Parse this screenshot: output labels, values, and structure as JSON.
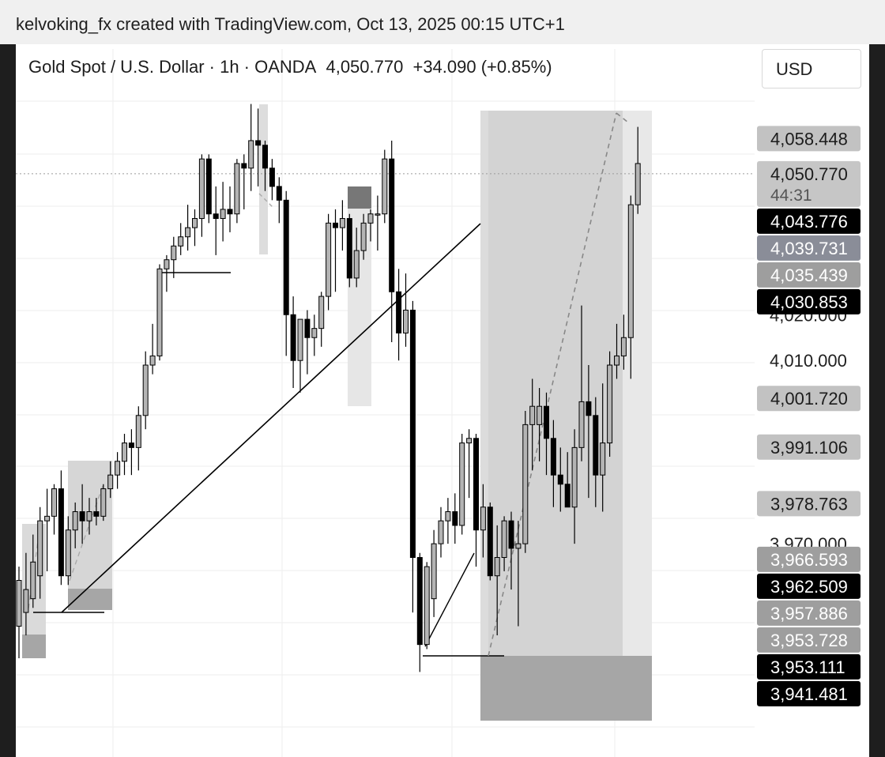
{
  "attribution": "kelvoking_fx created with TradingView.com, Oct 13, 2025 00:15 UTC+1",
  "legend": {
    "symbol": "Gold Spot / U.S. Dollar · 1h · OANDA",
    "last": "4,050.770",
    "change": "+34.090 (+0.85%)"
  },
  "currency": "USD",
  "countdown": "44:31",
  "colors": {
    "up_body": "#b4b4b4",
    "down_body": "#000000",
    "grid": "#eeeeee",
    "zone_light": "#e6e6e6",
    "zone_mid": "#d2d2d2",
    "zone_dark": "#a6a6a6"
  },
  "chart_data": {
    "type": "candlestick",
    "symbol": "XAUUSD",
    "timeframe": "1h",
    "ylim": [
      3930,
      4068
    ],
    "y_ticks": [
      "4,020.000",
      "4,010.000",
      "3,970.000"
    ],
    "price_labels": [
      {
        "text": "4,058.448",
        "value": 4058.448,
        "style": "gray"
      },
      {
        "text": "4,050.770",
        "value": 4050.77,
        "style": "current"
      },
      {
        "text": "4,043.776",
        "value": 4043.776,
        "style": "black"
      },
      {
        "text": "4,039.731",
        "value": 4039.731,
        "style": "slate"
      },
      {
        "text": "4,035.439",
        "value": 4035.439,
        "style": "gray-dark"
      },
      {
        "text": "4,030.853",
        "value": 4030.853,
        "style": "black"
      },
      {
        "text": "4,001.720",
        "value": 4001.72,
        "style": "gray"
      },
      {
        "text": "3,991.106",
        "value": 3991.106,
        "style": "gray"
      },
      {
        "text": "3,978.763",
        "value": 3978.763,
        "style": "gray"
      },
      {
        "text": "3,966.593",
        "value": 3966.593,
        "style": "gray-dark"
      },
      {
        "text": "3,962.509",
        "value": 3962.509,
        "style": "black"
      },
      {
        "text": "3,957.886",
        "value": 3957.886,
        "style": "gray-dark"
      },
      {
        "text": "3,953.728",
        "value": 3953.728,
        "style": "gray-dark"
      },
      {
        "text": "3,953.111",
        "value": 3953.111,
        "style": "black"
      },
      {
        "text": "3,941.481",
        "value": 3941.481,
        "style": "black"
      }
    ],
    "candles": [
      {
        "o": 3952,
        "h": 3965,
        "l": 3945,
        "c": 3962
      },
      {
        "o": 3955,
        "h": 3968,
        "l": 3950,
        "c": 3960
      },
      {
        "o": 3958,
        "h": 3972,
        "l": 3956,
        "c": 3966
      },
      {
        "o": 3963,
        "h": 3978,
        "l": 3958,
        "c": 3975
      },
      {
        "o": 3975,
        "h": 3982,
        "l": 3964,
        "c": 3976
      },
      {
        "o": 3976,
        "h": 3983,
        "l": 3972,
        "c": 3982
      },
      {
        "o": 3982,
        "h": 3986,
        "l": 3961,
        "c": 3963
      },
      {
        "o": 3963,
        "h": 3976,
        "l": 3961,
        "c": 3973
      },
      {
        "o": 3973,
        "h": 3979,
        "l": 3969,
        "c": 3977
      },
      {
        "o": 3977,
        "h": 3983,
        "l": 3970,
        "c": 3975
      },
      {
        "o": 3975,
        "h": 3980,
        "l": 3972,
        "c": 3977
      },
      {
        "o": 3977,
        "h": 3980,
        "l": 3974,
        "c": 3976
      },
      {
        "o": 3976,
        "h": 3983,
        "l": 3975,
        "c": 3982
      },
      {
        "o": 3982,
        "h": 3988,
        "l": 3980,
        "c": 3985
      },
      {
        "o": 3985,
        "h": 3990,
        "l": 3982,
        "c": 3988
      },
      {
        "o": 3988,
        "h": 3994,
        "l": 3985,
        "c": 3992
      },
      {
        "o": 3992,
        "h": 3995,
        "l": 3985,
        "c": 3991
      },
      {
        "o": 3991,
        "h": 4000,
        "l": 3986,
        "c": 3998
      },
      {
        "o": 3998,
        "h": 4012,
        "l": 3995,
        "c": 4009
      },
      {
        "o": 4009,
        "h": 4018,
        "l": 4007,
        "c": 4011
      },
      {
        "o": 4011,
        "h": 4031,
        "l": 4010,
        "c": 4030
      },
      {
        "o": 4030,
        "h": 4033,
        "l": 4025,
        "c": 4032
      },
      {
        "o": 4032,
        "h": 4037,
        "l": 4028,
        "c": 4035
      },
      {
        "o": 4035,
        "h": 4040,
        "l": 4033,
        "c": 4037
      },
      {
        "o": 4037,
        "h": 4044,
        "l": 4034,
        "c": 4039
      },
      {
        "o": 4039,
        "h": 4043,
        "l": 4035,
        "c": 4041
      },
      {
        "o": 4041,
        "h": 4055,
        "l": 4037,
        "c": 4054
      },
      {
        "o": 4054,
        "h": 4055,
        "l": 4040,
        "c": 4042
      },
      {
        "o": 4042,
        "h": 4048,
        "l": 4033,
        "c": 4041
      },
      {
        "o": 4041,
        "h": 4049,
        "l": 4036,
        "c": 4043
      },
      {
        "o": 4043,
        "h": 4048,
        "l": 4038,
        "c": 4042
      },
      {
        "o": 4042,
        "h": 4054,
        "l": 4040,
        "c": 4053
      },
      {
        "o": 4053,
        "h": 4055,
        "l": 4043,
        "c": 4052
      },
      {
        "o": 4052,
        "h": 4066,
        "l": 4047,
        "c": 4058
      },
      {
        "o": 4058,
        "h": 4065,
        "l": 4048,
        "c": 4057
      },
      {
        "o": 4057,
        "h": 4058,
        "l": 4047,
        "c": 4052
      },
      {
        "o": 4052,
        "h": 4054,
        "l": 4045,
        "c": 4048
      },
      {
        "o": 4048,
        "h": 4050,
        "l": 4040,
        "c": 4045
      },
      {
        "o": 4045,
        "h": 4047,
        "l": 4011,
        "c": 4020
      },
      {
        "o": 4020,
        "h": 4024,
        "l": 4004,
        "c": 4010
      },
      {
        "o": 4010,
        "h": 4019,
        "l": 4003,
        "c": 4019
      },
      {
        "o": 4019,
        "h": 4021,
        "l": 4007,
        "c": 4015
      },
      {
        "o": 4015,
        "h": 4020,
        "l": 4011,
        "c": 4017
      },
      {
        "o": 4017,
        "h": 4025,
        "l": 4013,
        "c": 4024
      },
      {
        "o": 4024,
        "h": 4042,
        "l": 4021,
        "c": 4040
      },
      {
        "o": 4040,
        "h": 4043,
        "l": 4025,
        "c": 4039
      },
      {
        "o": 4039,
        "h": 4045,
        "l": 4034,
        "c": 4041
      },
      {
        "o": 4041,
        "h": 4042,
        "l": 4026,
        "c": 4028
      },
      {
        "o": 4028,
        "h": 4039,
        "l": 4026,
        "c": 4034
      },
      {
        "o": 4034,
        "h": 4042,
        "l": 4032,
        "c": 4040
      },
      {
        "o": 4040,
        "h": 4043,
        "l": 4036,
        "c": 4042
      },
      {
        "o": 4042,
        "h": 4046,
        "l": 4034,
        "c": 4042
      },
      {
        "o": 4042,
        "h": 4056,
        "l": 4040,
        "c": 4054
      },
      {
        "o": 4054,
        "h": 4058,
        "l": 4014,
        "c": 4025
      },
      {
        "o": 4025,
        "h": 4030,
        "l": 4010,
        "c": 4016
      },
      {
        "o": 4016,
        "h": 4029,
        "l": 4013,
        "c": 4021
      },
      {
        "o": 4021,
        "h": 4023,
        "l": 3955,
        "c": 3967
      },
      {
        "o": 3967,
        "h": 3968,
        "l": 3942,
        "c": 3948
      },
      {
        "o": 3948,
        "h": 3966,
        "l": 3947,
        "c": 3965
      },
      {
        "o": 3958,
        "h": 3973,
        "l": 3954,
        "c": 3970
      },
      {
        "o": 3970,
        "h": 3978,
        "l": 3967,
        "c": 3975
      },
      {
        "o": 3975,
        "h": 3980,
        "l": 3970,
        "c": 3977
      },
      {
        "o": 3977,
        "h": 3981,
        "l": 3970,
        "c": 3974
      },
      {
        "o": 3974,
        "h": 3994,
        "l": 3972,
        "c": 3992
      },
      {
        "o": 3992,
        "h": 3995,
        "l": 3980,
        "c": 3993
      },
      {
        "o": 3993,
        "h": 3994,
        "l": 3965,
        "c": 3973
      },
      {
        "o": 3973,
        "h": 3983,
        "l": 3967,
        "c": 3978
      },
      {
        "o": 3978,
        "h": 3979,
        "l": 3962,
        "c": 3963
      },
      {
        "o": 3963,
        "h": 3974,
        "l": 3950,
        "c": 3967
      },
      {
        "o": 3967,
        "h": 3976,
        "l": 3964,
        "c": 3975
      },
      {
        "o": 3975,
        "h": 3977,
        "l": 3960,
        "c": 3969
      },
      {
        "o": 3969,
        "h": 3975,
        "l": 3952,
        "c": 3970
      },
      {
        "o": 3970,
        "h": 3999,
        "l": 3968,
        "c": 3996
      },
      {
        "o": 3996,
        "h": 4006,
        "l": 3986,
        "c": 4000
      },
      {
        "o": 3996,
        "h": 4004,
        "l": 3988,
        "c": 4000
      },
      {
        "o": 4000,
        "h": 4003,
        "l": 3985,
        "c": 3993
      },
      {
        "o": 3993,
        "h": 3997,
        "l": 3978,
        "c": 3985
      },
      {
        "o": 3985,
        "h": 3991,
        "l": 3977,
        "c": 3983
      },
      {
        "o": 3983,
        "h": 3990,
        "l": 3979,
        "c": 3978
      },
      {
        "o": 3978,
        "h": 3995,
        "l": 3970,
        "c": 3991
      },
      {
        "o": 3991,
        "h": 4022,
        "l": 3988,
        "c": 4001
      },
      {
        "o": 4001,
        "h": 4009,
        "l": 3980,
        "c": 3998
      },
      {
        "o": 3998,
        "h": 4002,
        "l": 3978,
        "c": 3985
      },
      {
        "o": 3985,
        "h": 4005,
        "l": 3977,
        "c": 3992
      },
      {
        "o": 3992,
        "h": 4012,
        "l": 3989,
        "c": 4009
      },
      {
        "o": 4009,
        "h": 4018,
        "l": 4006,
        "c": 4011
      },
      {
        "o": 4011,
        "h": 4020,
        "l": 4008,
        "c": 4015
      },
      {
        "o": 4015,
        "h": 4046,
        "l": 4006,
        "c": 4044
      },
      {
        "o": 4044,
        "h": 4061,
        "l": 4042,
        "c": 4053
      }
    ]
  }
}
